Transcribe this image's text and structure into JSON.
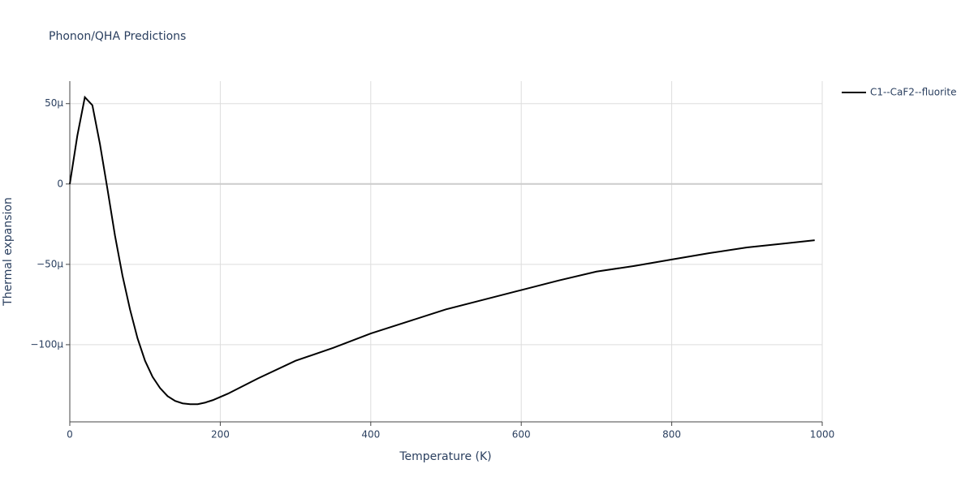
{
  "chart_data": {
    "type": "line",
    "title": "Phonon/QHA Predictions",
    "x_label": "Temperature (K)",
    "y_label": "Thermal expansion",
    "x": [
      0,
      10,
      20,
      30,
      40,
      50,
      60,
      70,
      80,
      90,
      100,
      110,
      120,
      130,
      140,
      150,
      160,
      170,
      180,
      190,
      200,
      210,
      250,
      300,
      350,
      400,
      450,
      500,
      550,
      600,
      650,
      700,
      750,
      800,
      850,
      900,
      950,
      990
    ],
    "series": [
      {
        "name": "C1--CaF2--fluorite",
        "color": "#000000",
        "values": [
          0,
          3e-05,
          5.4e-05,
          4.9e-05,
          2.5e-05,
          -3e-06,
          -3.2e-05,
          -5.7e-05,
          -7.8e-05,
          -9.6e-05,
          -0.00011,
          -0.00012,
          -0.000127,
          -0.000132,
          -0.000135,
          -0.0001365,
          -0.000137,
          -0.000137,
          -0.000136,
          -0.0001345,
          -0.0001325,
          -0.0001305,
          -0.000121,
          -0.00011,
          -0.000102,
          -9.3e-05,
          -8.55e-05,
          -7.8e-05,
          -7.2e-05,
          -6.6e-05,
          -6e-05,
          -5.45e-05,
          -5.1e-05,
          -4.7e-05,
          -4.3e-05,
          -3.95e-05,
          -3.7e-05,
          -3.5e-05
        ]
      }
    ],
    "xlim": [
      0,
      1000
    ],
    "xticks": [
      0,
      200,
      400,
      600,
      800,
      1000
    ],
    "ylim": [
      -0.000148,
      6.4e-05
    ],
    "yticks": [
      {
        "value": 5e-05,
        "label": "50μ"
      },
      0,
      {
        "value": -5e-05,
        "label": "−50μ"
      },
      {
        "value": -0.0001,
        "label": "−100μ"
      }
    ],
    "grid": true,
    "legend": "right"
  }
}
